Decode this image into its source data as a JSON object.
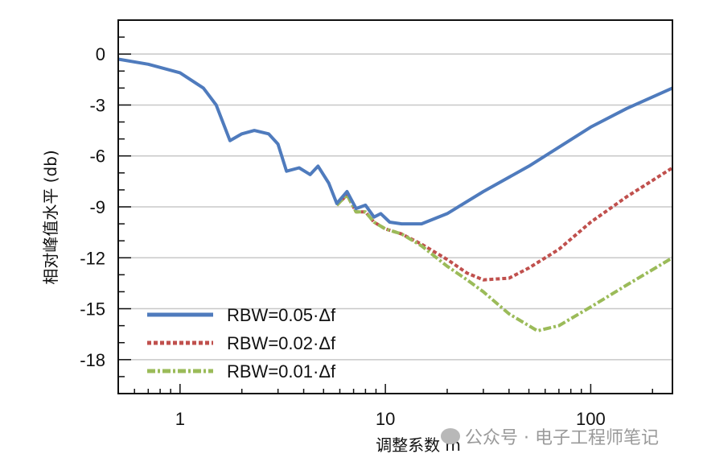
{
  "chart_data": {
    "type": "line",
    "title": "",
    "xlabel": "调整系数 m",
    "ylabel": "相对峰值水平 (db)",
    "xscale": "log",
    "xlim": [
      0.5,
      250
    ],
    "ylim": [
      -20,
      2
    ],
    "xticks": [
      1,
      10,
      100
    ],
    "xtick_labels": [
      "1",
      "10",
      "100"
    ],
    "yticks": [
      0,
      -3,
      -6,
      -9,
      -12,
      -15,
      -18
    ],
    "ytick_labels": [
      "0",
      "-3",
      "-6",
      "-9",
      "-12",
      "-15",
      "-18"
    ],
    "grid": "horizontal",
    "legend_position": "bottom-left",
    "series": [
      {
        "name": "RBW=0.05·Δf",
        "color": "#4f7bbd",
        "style": "solid",
        "x": [
          0.5,
          0.7,
          1,
          1.3,
          1.5,
          1.75,
          2.0,
          2.3,
          2.7,
          3.0,
          3.3,
          3.8,
          4.3,
          4.7,
          5.3,
          5.8,
          6.5,
          7.2,
          8.0,
          8.8,
          9.5,
          10.5,
          12,
          15,
          20,
          30,
          50,
          100,
          150,
          250
        ],
        "y": [
          -0.3,
          -0.6,
          -1.1,
          -2.0,
          -3.0,
          -5.1,
          -4.7,
          -4.5,
          -4.7,
          -5.3,
          -6.9,
          -6.7,
          -7.1,
          -6.6,
          -7.6,
          -8.8,
          -8.1,
          -9.1,
          -8.9,
          -9.6,
          -9.4,
          -9.9,
          -10.0,
          -10.0,
          -9.4,
          -8.1,
          -6.6,
          -4.3,
          -3.2,
          -2.0
        ]
      },
      {
        "name": "RBW=0.02·Δf",
        "color": "#c0504d",
        "style": "dotted",
        "x": [
          5.8,
          6.5,
          7.2,
          8.0,
          8.8,
          10,
          12,
          15,
          20,
          25,
          30,
          40,
          50,
          70,
          100,
          150,
          250
        ],
        "y": [
          -8.9,
          -8.3,
          -9.3,
          -9.3,
          -9.9,
          -10.3,
          -10.6,
          -11.2,
          -12.1,
          -12.9,
          -13.3,
          -13.2,
          -12.6,
          -11.5,
          -9.9,
          -8.4,
          -6.7
        ]
      },
      {
        "name": "RBW=0.01·Δf",
        "color": "#9bbb59",
        "style": "dash-dot",
        "x": [
          5.8,
          6.5,
          7.2,
          8.0,
          8.8,
          10,
          12,
          15,
          20,
          25,
          30,
          40,
          55,
          70,
          100,
          150,
          250
        ],
        "y": [
          -8.9,
          -8.3,
          -9.3,
          -9.3,
          -9.9,
          -10.3,
          -10.6,
          -11.3,
          -12.5,
          -13.3,
          -14.0,
          -15.3,
          -16.3,
          -16.0,
          -14.9,
          -13.6,
          -12.0
        ]
      }
    ]
  },
  "watermark": "公众号 · 电子工程师笔记"
}
